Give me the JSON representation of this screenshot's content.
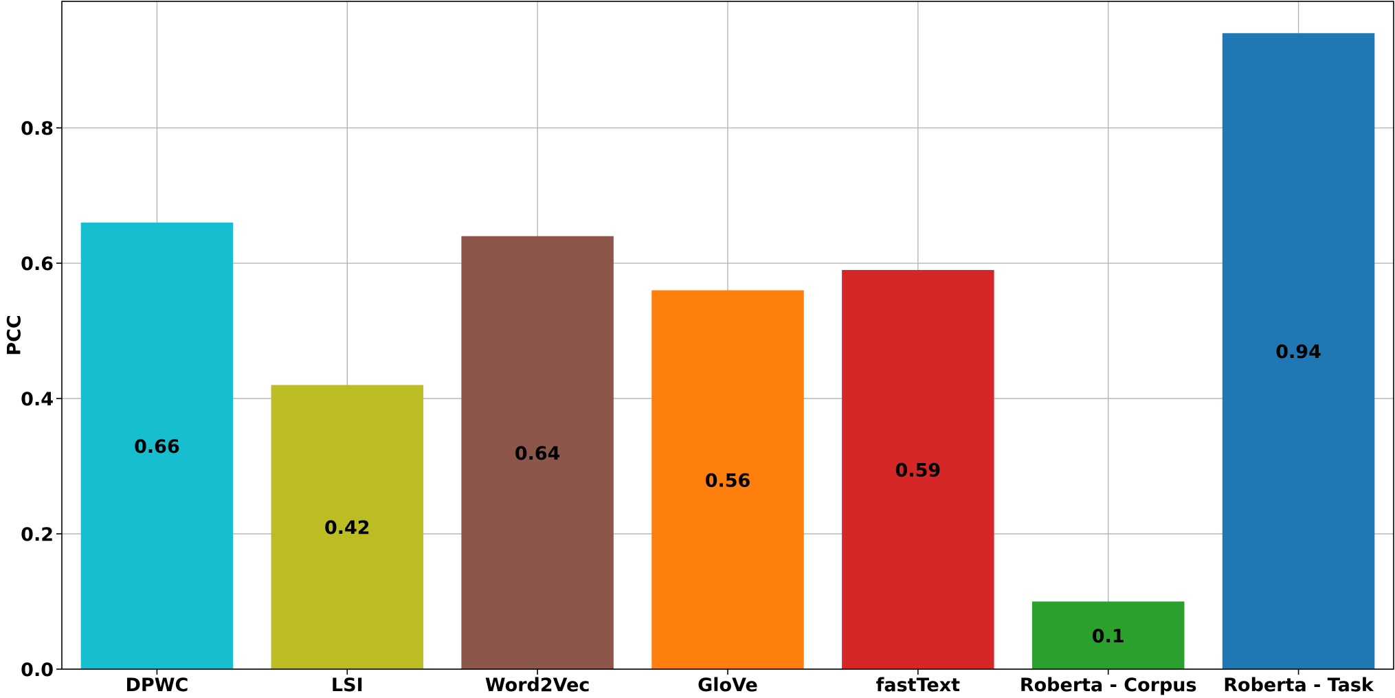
{
  "chart_data": {
    "type": "bar",
    "title": "",
    "xlabel": "",
    "ylabel": "PCC",
    "categories": [
      "DPWC",
      "LSI",
      "Word2Vec",
      "GloVe",
      "fastText",
      "Roberta - Corpus",
      "Roberta - Task"
    ],
    "values": [
      0.66,
      0.42,
      0.64,
      0.56,
      0.59,
      0.1,
      0.94
    ],
    "data_labels": [
      "0.66",
      "0.42",
      "0.64",
      "0.56",
      "0.59",
      "0.1",
      "0.94"
    ],
    "colors": [
      "#17becf",
      "#bcbd22",
      "#8c564b",
      "#ff7f0e",
      "#d62728",
      "#2ca02c",
      "#1f77b4"
    ],
    "ylim": [
      0,
      0.987
    ],
    "yticks": [
      0.0,
      0.2,
      0.4,
      0.6,
      0.8
    ],
    "ytick_labels": [
      "0.0",
      "0.2",
      "0.4",
      "0.6",
      "0.8"
    ],
    "grid": true,
    "legend": "none"
  }
}
